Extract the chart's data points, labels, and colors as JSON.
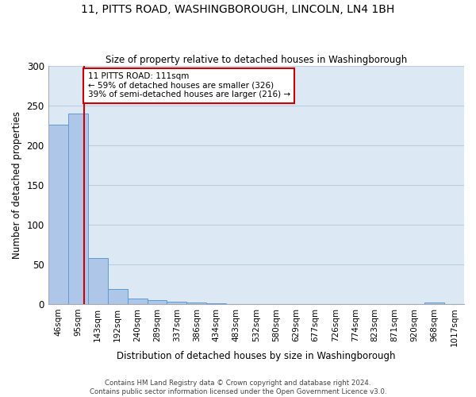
{
  "title": "11, PITTS ROAD, WASHINGBOROUGH, LINCOLN, LN4 1BH",
  "subtitle": "Size of property relative to detached houses in Washingborough",
  "xlabel": "Distribution of detached houses by size in Washingborough",
  "ylabel": "Number of detached properties",
  "bin_labels": [
    "46sqm",
    "95sqm",
    "143sqm",
    "192sqm",
    "240sqm",
    "289sqm",
    "337sqm",
    "386sqm",
    "434sqm",
    "483sqm",
    "532sqm",
    "580sqm",
    "629sqm",
    "677sqm",
    "726sqm",
    "774sqm",
    "823sqm",
    "871sqm",
    "920sqm",
    "968sqm",
    "1017sqm"
  ],
  "bar_heights": [
    226,
    240,
    58,
    19,
    7,
    5,
    3,
    2,
    1,
    0,
    0,
    0,
    0,
    0,
    0,
    0,
    0,
    0,
    0,
    2,
    0
  ],
  "bar_color": "#aec6e8",
  "bar_edge_color": "#5b9bd5",
  "property_line_color": "#cc0000",
  "annotation_text": "11 PITTS ROAD: 111sqm\n← 59% of detached houses are smaller (326)\n39% of semi-detached houses are larger (216) →",
  "annotation_box_color": "#ffffff",
  "annotation_box_edge_color": "#cc0000",
  "ylim": [
    0,
    300
  ],
  "yticks": [
    0,
    50,
    100,
    150,
    200,
    250,
    300
  ],
  "grid_color": "#b8cfe0",
  "background_color": "#dce9f5",
  "fig_background": "#ffffff",
  "footer_line1": "Contains HM Land Registry data © Crown copyright and database right 2024.",
  "footer_line2": "Contains public sector information licensed under the Open Government Licence v3.0."
}
